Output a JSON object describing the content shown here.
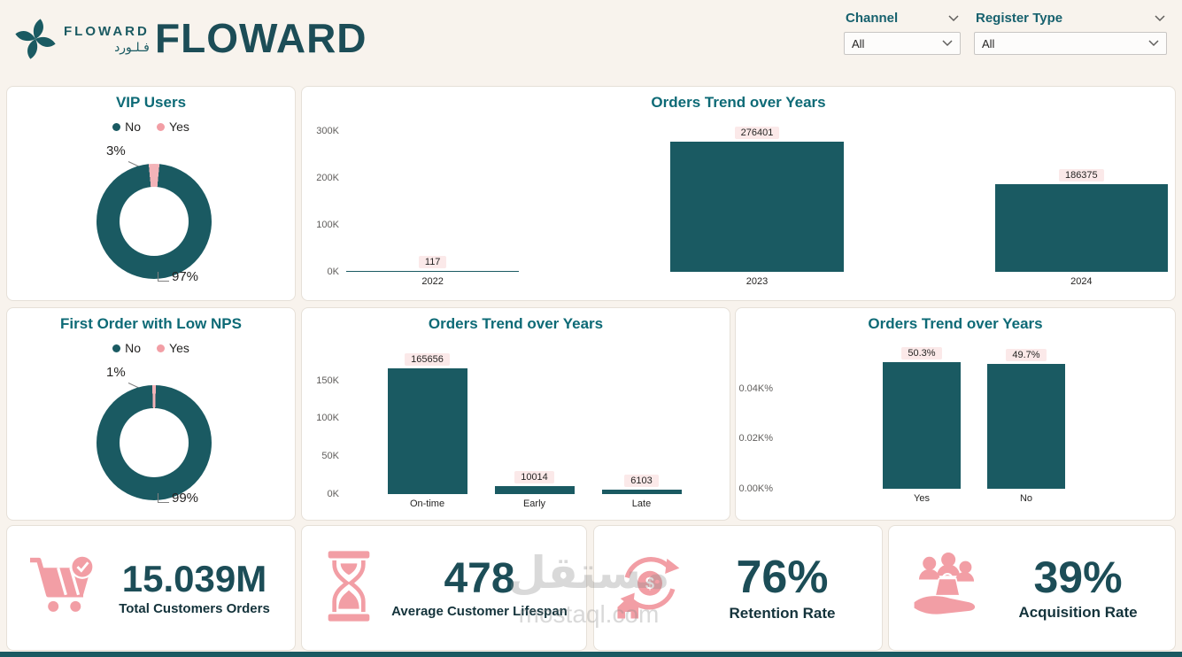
{
  "palette": {
    "teal": "#1A5A62",
    "teal_title": "#0D6A76",
    "teal_dark": "#1C4D57",
    "pink": "#F29EA5",
    "pink_slice": "#F3B3B8",
    "label_bg": "#FBE9E9",
    "background": "#F8F3ED"
  },
  "header": {
    "logo_text": "FLOWARD",
    "logo_text_arabic": "فـلـورد",
    "title": "FLOWARD",
    "slicers": [
      {
        "label": "Channel",
        "value": "All"
      },
      {
        "label": "Register Type",
        "value": "All"
      }
    ]
  },
  "watermark": {
    "arabic": "مستقل",
    "latin": "mostaql.com"
  },
  "kpis": [
    {
      "icon": "cart-check-icon",
      "value": "15.039M",
      "label": "Total Customers Orders"
    },
    {
      "icon": "hourglass-icon",
      "value": "478",
      "label": "Average Customer Lifespan"
    },
    {
      "icon": "retention-cycle-icon",
      "value": "76%",
      "label": "Retention Rate"
    },
    {
      "icon": "acquisition-hand-icon",
      "value": "39%",
      "label": "Acquisition Rate"
    }
  ],
  "chart_data": [
    {
      "type": "pie",
      "title": "VIP Users",
      "legend": [
        "No",
        "Yes"
      ],
      "labels": [
        "No",
        "Yes"
      ],
      "values": [
        97,
        3
      ],
      "value_labels": [
        "97%",
        "3%"
      ],
      "colors": {
        "No": "#1A5A62",
        "Yes": "#F3B3B8"
      }
    },
    {
      "type": "bar",
      "title": "Orders Trend over Years",
      "categories": [
        "2022",
        "2023",
        "2024"
      ],
      "values": [
        117,
        276401,
        186375
      ],
      "value_labels": [
        "117",
        "276401",
        "186375"
      ],
      "yticks": [
        {
          "label": "0K",
          "value": 0
        },
        {
          "label": "100K",
          "value": 100000
        },
        {
          "label": "200K",
          "value": 200000
        },
        {
          "label": "300K",
          "value": 300000
        }
      ],
      "axis_max": 320000,
      "xlabel": "",
      "ylabel": ""
    },
    {
      "type": "pie",
      "title": "First Order with Low NPS",
      "legend": [
        "No",
        "Yes"
      ],
      "labels": [
        "No",
        "Yes"
      ],
      "values": [
        99,
        1
      ],
      "value_labels": [
        "99%",
        "1%"
      ],
      "colors": {
        "No": "#1A5A62",
        "Yes": "#F3B3B8"
      }
    },
    {
      "type": "bar",
      "title": "Orders Trend over Years",
      "categories": [
        "On-time",
        "Early",
        "Late"
      ],
      "values": [
        165656,
        10014,
        6103
      ],
      "value_labels": [
        "165656",
        "10014",
        "6103"
      ],
      "yticks": [
        {
          "label": "0K",
          "value": 0
        },
        {
          "label": "50K",
          "value": 50000
        },
        {
          "label": "100K",
          "value": 100000
        },
        {
          "label": "150K",
          "value": 150000
        }
      ],
      "axis_max": 180000,
      "xlabel": "",
      "ylabel": ""
    },
    {
      "type": "bar",
      "title": "Orders Trend over Years",
      "categories": [
        "Yes",
        "No"
      ],
      "values": [
        50.3,
        49.7
      ],
      "value_labels": [
        "50.3%",
        "49.7%"
      ],
      "yticks": [
        {
          "label": "0.00K%",
          "value": 0
        },
        {
          "label": "0.02K%",
          "value": 20
        },
        {
          "label": "0.04K%",
          "value": 40
        }
      ],
      "axis_max": 54,
      "xlabel": "",
      "ylabel": ""
    }
  ]
}
